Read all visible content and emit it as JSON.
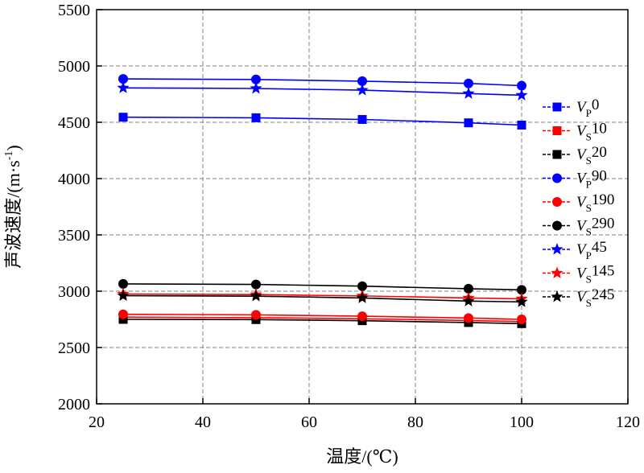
{
  "chart_data": {
    "type": "line",
    "title": "",
    "xlabel": "温度/(℃)",
    "ylabel": "声波速度/(m·s⁻¹)",
    "ylabel_main": "声波速度/(m·s",
    "ylabel_sup": "-1",
    "ylabel_close": ")",
    "xlim": [
      20,
      120
    ],
    "ylim": [
      2000,
      5500
    ],
    "xticks": [
      20,
      40,
      60,
      80,
      100,
      120
    ],
    "yticks": [
      2000,
      2500,
      3000,
      3500,
      4000,
      4500,
      5000,
      5500
    ],
    "grid": true,
    "legend_position": "right",
    "x": [
      25,
      50,
      70,
      90,
      100
    ],
    "series": [
      {
        "name": "VP0",
        "base": "V",
        "sub": "P",
        "num": "0",
        "marker": "square",
        "color": "#0000ff",
        "values": [
          4545,
          4540,
          4525,
          4495,
          4475
        ]
      },
      {
        "name": "VS10",
        "base": "V",
        "sub": "S",
        "num": "10",
        "marker": "square",
        "color": "#ff0000",
        "values": [
          2770,
          2765,
          2755,
          2740,
          2730
        ]
      },
      {
        "name": "VS20",
        "base": "V",
        "sub": "S",
        "num": "20",
        "marker": "square",
        "color": "#000000",
        "values": [
          2750,
          2748,
          2738,
          2722,
          2712
        ]
      },
      {
        "name": "VP90",
        "base": "V",
        "sub": "P",
        "num": "90",
        "marker": "circle",
        "color": "#0000ff",
        "values": [
          4885,
          4880,
          4865,
          4845,
          4825
        ]
      },
      {
        "name": "VS190",
        "base": "V",
        "sub": "S",
        "num": "190",
        "marker": "circle",
        "color": "#ff0000",
        "values": [
          2795,
          2790,
          2778,
          2762,
          2750
        ]
      },
      {
        "name": "VS290",
        "base": "V",
        "sub": "S",
        "num": "290",
        "marker": "circle",
        "color": "#000000",
        "values": [
          3065,
          3060,
          3045,
          3022,
          3012
        ]
      },
      {
        "name": "VP45",
        "base": "V",
        "sub": "P",
        "num": "45",
        "marker": "star",
        "color": "#0000ff",
        "values": [
          4805,
          4800,
          4785,
          4755,
          4740
        ]
      },
      {
        "name": "VS145",
        "base": "V",
        "sub": "S",
        "num": "145",
        "marker": "star",
        "color": "#ff0000",
        "values": [
          2975,
          2970,
          2958,
          2940,
          2932
        ]
      },
      {
        "name": "VS245",
        "base": "V",
        "sub": "S",
        "num": "245",
        "marker": "star",
        "color": "#000000",
        "values": [
          2960,
          2956,
          2940,
          2912,
          2905
        ]
      }
    ]
  }
}
